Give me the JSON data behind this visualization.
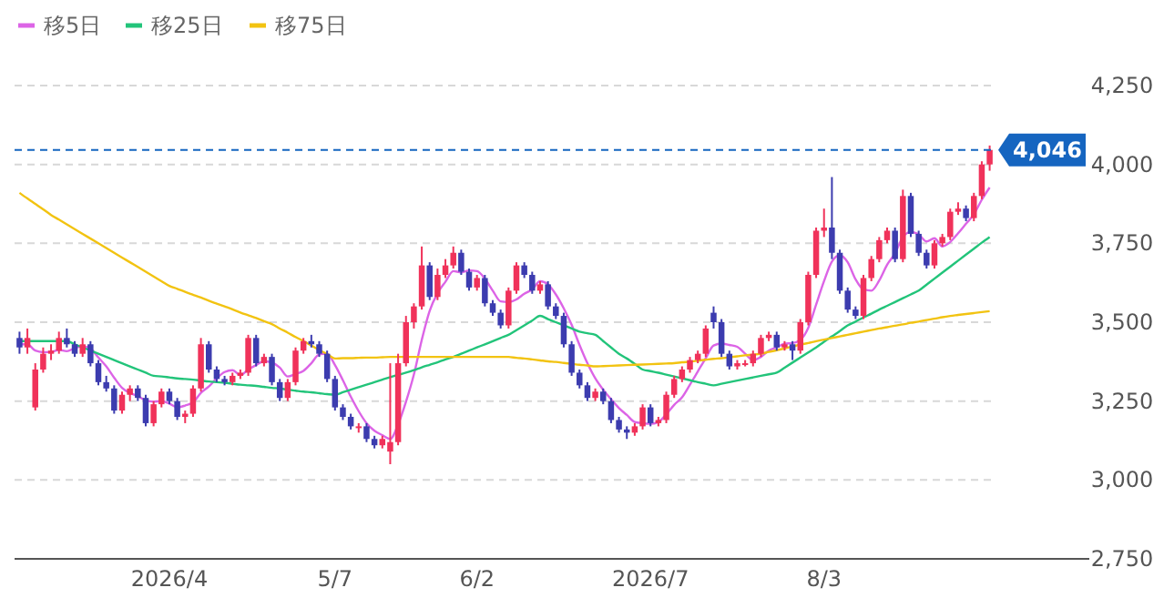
{
  "chart_data": {
    "type": "candlestick",
    "categories": [
      null,
      null,
      null,
      null,
      null,
      null,
      null,
      null,
      null,
      null,
      null,
      null,
      null,
      null,
      null,
      null,
      null,
      null,
      null,
      "2026/4",
      null,
      null,
      null,
      null,
      null,
      null,
      null,
      null,
      null,
      null,
      null,
      null,
      null,
      null,
      null,
      null,
      null,
      null,
      null,
      null,
      "5/7",
      null,
      null,
      null,
      null,
      null,
      null,
      null,
      null,
      null,
      null,
      null,
      null,
      null,
      null,
      null,
      null,
      null,
      "6/2",
      null,
      null,
      null,
      null,
      null,
      null,
      null,
      null,
      null,
      null,
      null,
      null,
      null,
      null,
      null,
      null,
      null,
      null,
      null,
      null,
      null,
      "2026/7",
      null,
      null,
      null,
      null,
      null,
      null,
      null,
      null,
      null,
      null,
      null,
      null,
      null,
      null,
      null,
      null,
      null,
      null,
      null,
      null,
      null,
      "8/3",
      null,
      null,
      null,
      null,
      null,
      null,
      null,
      null,
      null,
      null,
      null,
      null,
      null,
      null,
      null,
      null,
      null,
      null,
      null,
      null,
      null
    ],
    "ohlc": [
      [
        3450,
        3470,
        3400,
        3420
      ],
      [
        3420,
        3480,
        3400,
        3450
      ],
      [
        3230,
        3370,
        3220,
        3350
      ],
      [
        3350,
        3420,
        3340,
        3400
      ],
      [
        3400,
        3430,
        3380,
        3410
      ],
      [
        3410,
        3470,
        3400,
        3450
      ],
      [
        3450,
        3480,
        3420,
        3430
      ],
      [
        3430,
        3440,
        3390,
        3400
      ],
      [
        3400,
        3450,
        3390,
        3430
      ],
      [
        3430,
        3440,
        3360,
        3370
      ],
      [
        3370,
        3380,
        3300,
        3310
      ],
      [
        3310,
        3330,
        3280,
        3290
      ],
      [
        3290,
        3300,
        3210,
        3220
      ],
      [
        3220,
        3280,
        3210,
        3270
      ],
      [
        3270,
        3300,
        3250,
        3290
      ],
      [
        3290,
        3300,
        3250,
        3260
      ],
      [
        3260,
        3270,
        3170,
        3180
      ],
      [
        3180,
        3250,
        3170,
        3240
      ],
      [
        3240,
        3290,
        3230,
        3280
      ],
      [
        3280,
        3290,
        3240,
        3250
      ],
      [
        3250,
        3260,
        3190,
        3200
      ],
      [
        3200,
        3220,
        3180,
        3210
      ],
      [
        3210,
        3300,
        3200,
        3290
      ],
      [
        3290,
        3450,
        3280,
        3430
      ],
      [
        3430,
        3440,
        3340,
        3350
      ],
      [
        3350,
        3360,
        3310,
        3320
      ],
      [
        3320,
        3330,
        3300,
        3310
      ],
      [
        3310,
        3340,
        3300,
        3330
      ],
      [
        3330,
        3350,
        3320,
        3340
      ],
      [
        3340,
        3460,
        3330,
        3450
      ],
      [
        3450,
        3460,
        3360,
        3370
      ],
      [
        3370,
        3400,
        3360,
        3390
      ],
      [
        3390,
        3400,
        3300,
        3310
      ],
      [
        3310,
        3320,
        3250,
        3260
      ],
      [
        3260,
        3320,
        3250,
        3310
      ],
      [
        3310,
        3420,
        3300,
        3410
      ],
      [
        3410,
        3450,
        3400,
        3440
      ],
      [
        3440,
        3460,
        3420,
        3430
      ],
      [
        3430,
        3440,
        3390,
        3400
      ],
      [
        3400,
        3410,
        3310,
        3320
      ],
      [
        3320,
        3330,
        3220,
        3230
      ],
      [
        3230,
        3240,
        3190,
        3200
      ],
      [
        3200,
        3210,
        3160,
        3170
      ],
      [
        3170,
        3180,
        3150,
        3170
      ],
      [
        3170,
        3180,
        3120,
        3130
      ],
      [
        3130,
        3140,
        3100,
        3110
      ],
      [
        3110,
        3140,
        3100,
        3130
      ],
      [
        3090,
        3370,
        3050,
        3120
      ],
      [
        3120,
        3400,
        3110,
        3370
      ],
      [
        3370,
        3520,
        3360,
        3500
      ],
      [
        3500,
        3560,
        3480,
        3550
      ],
      [
        3550,
        3740,
        3540,
        3680
      ],
      [
        3680,
        3690,
        3570,
        3580
      ],
      [
        3580,
        3670,
        3570,
        3650
      ],
      [
        3650,
        3700,
        3640,
        3680
      ],
      [
        3680,
        3740,
        3670,
        3720
      ],
      [
        3720,
        3730,
        3650,
        3660
      ],
      [
        3660,
        3670,
        3600,
        3610
      ],
      [
        3610,
        3650,
        3600,
        3640
      ],
      [
        3640,
        3650,
        3550,
        3560
      ],
      [
        3560,
        3570,
        3520,
        3530
      ],
      [
        3530,
        3540,
        3480,
        3490
      ],
      [
        3490,
        3610,
        3480,
        3600
      ],
      [
        3600,
        3690,
        3590,
        3680
      ],
      [
        3680,
        3690,
        3640,
        3650
      ],
      [
        3650,
        3660,
        3590,
        3600
      ],
      [
        3600,
        3630,
        3590,
        3620
      ],
      [
        3620,
        3630,
        3540,
        3550
      ],
      [
        3550,
        3560,
        3510,
        3520
      ],
      [
        3520,
        3530,
        3420,
        3430
      ],
      [
        3430,
        3440,
        3330,
        3340
      ],
      [
        3340,
        3350,
        3290,
        3300
      ],
      [
        3300,
        3310,
        3250,
        3260
      ],
      [
        3260,
        3290,
        3250,
        3280
      ],
      [
        3280,
        3290,
        3240,
        3250
      ],
      [
        3250,
        3260,
        3180,
        3190
      ],
      [
        3190,
        3200,
        3150,
        3160
      ],
      [
        3160,
        3170,
        3130,
        3150
      ],
      [
        3150,
        3180,
        3140,
        3170
      ],
      [
        3170,
        3240,
        3160,
        3230
      ],
      [
        3230,
        3240,
        3170,
        3180
      ],
      [
        3180,
        3200,
        3170,
        3190
      ],
      [
        3190,
        3280,
        3180,
        3270
      ],
      [
        3270,
        3330,
        3260,
        3320
      ],
      [
        3320,
        3360,
        3310,
        3350
      ],
      [
        3350,
        3390,
        3340,
        3380
      ],
      [
        3380,
        3410,
        3370,
        3400
      ],
      [
        3400,
        3490,
        3390,
        3480
      ],
      [
        3530,
        3550,
        3480,
        3500
      ],
      [
        3500,
        3510,
        3390,
        3400
      ],
      [
        3400,
        3410,
        3350,
        3360
      ],
      [
        3360,
        3380,
        3350,
        3370
      ],
      [
        3370,
        3380,
        3360,
        3370
      ],
      [
        3370,
        3410,
        3360,
        3400
      ],
      [
        3400,
        3460,
        3390,
        3450
      ],
      [
        3450,
        3470,
        3440,
        3460
      ],
      [
        3460,
        3470,
        3410,
        3420
      ],
      [
        3420,
        3440,
        3410,
        3430
      ],
      [
        3430,
        3440,
        3380,
        3410
      ],
      [
        3410,
        3510,
        3400,
        3500
      ],
      [
        3500,
        3660,
        3490,
        3650
      ],
      [
        3650,
        3800,
        3640,
        3790
      ],
      [
        3790,
        3860,
        3770,
        3800
      ],
      [
        3800,
        3960,
        3700,
        3720
      ],
      [
        3720,
        3730,
        3590,
        3600
      ],
      [
        3600,
        3610,
        3530,
        3540
      ],
      [
        3540,
        3550,
        3510,
        3520
      ],
      [
        3520,
        3650,
        3510,
        3640
      ],
      [
        3640,
        3710,
        3630,
        3700
      ],
      [
        3700,
        3770,
        3690,
        3760
      ],
      [
        3760,
        3800,
        3750,
        3790
      ],
      [
        3790,
        3800,
        3690,
        3700
      ],
      [
        3700,
        3920,
        3690,
        3900
      ],
      [
        3900,
        3910,
        3770,
        3780
      ],
      [
        3780,
        3790,
        3710,
        3720
      ],
      [
        3720,
        3730,
        3670,
        3680
      ],
      [
        3680,
        3760,
        3670,
        3750
      ],
      [
        3750,
        3780,
        3740,
        3770
      ],
      [
        3770,
        3860,
        3760,
        3850
      ],
      [
        3850,
        3880,
        3840,
        3860
      ],
      [
        3860,
        3870,
        3820,
        3830
      ],
      [
        3830,
        3910,
        3820,
        3900
      ],
      [
        3900,
        4010,
        3890,
        4000
      ],
      [
        4000,
        4060,
        3980,
        4046
      ]
    ],
    "colors": [
      "#3c3caf",
      "#f0325a",
      "#f0325a",
      "#f0325a",
      "#f0325a",
      "#f0325a",
      "#3c3caf",
      "#3c3caf",
      "#f0325a",
      "#3c3caf",
      "#3c3caf",
      "#3c3caf",
      "#3c3caf",
      "#f0325a",
      "#f0325a",
      "#3c3caf",
      "#3c3caf",
      "#f0325a",
      "#f0325a",
      "#3c3caf",
      "#3c3caf",
      "#f0325a",
      "#f0325a",
      "#f0325a",
      "#3c3caf",
      "#3c3caf",
      "#3c3caf",
      "#f0325a",
      "#f0325a",
      "#f0325a",
      "#3c3caf",
      "#f0325a",
      "#3c3caf",
      "#3c3caf",
      "#f0325a",
      "#f0325a",
      "#f0325a",
      "#3c3caf",
      "#3c3caf",
      "#3c3caf",
      "#3c3caf",
      "#3c3caf",
      "#3c3caf",
      "#f0325a",
      "#3c3caf",
      "#3c3caf",
      "#f0325a",
      "#f0325a",
      "#f0325a",
      "#f0325a",
      "#f0325a",
      "#f0325a",
      "#3c3caf",
      "#f0325a",
      "#f0325a",
      "#f0325a",
      "#3c3caf",
      "#3c3caf",
      "#f0325a",
      "#3c3caf",
      "#3c3caf",
      "#3c3caf",
      "#f0325a",
      "#f0325a",
      "#3c3caf",
      "#3c3caf",
      "#f0325a",
      "#3c3caf",
      "#3c3caf",
      "#3c3caf",
      "#3c3caf",
      "#3c3caf",
      "#3c3caf",
      "#f0325a",
      "#3c3caf",
      "#3c3caf",
      "#3c3caf",
      "#3c3caf",
      "#f0325a",
      "#f0325a",
      "#3c3caf",
      "#f0325a",
      "#f0325a",
      "#f0325a",
      "#f0325a",
      "#f0325a",
      "#f0325a",
      "#f0325a",
      "#3c3caf",
      "#3c3caf",
      "#3c3caf",
      "#f0325a",
      "#f0325a",
      "#f0325a",
      "#f0325a",
      "#f0325a",
      "#3c3caf",
      "#f0325a",
      "#3c3caf",
      "#f0325a",
      "#f0325a",
      "#f0325a",
      "#f0325a",
      "#3c3caf",
      "#3c3caf",
      "#3c3caf",
      "#3c3caf",
      "#f0325a",
      "#f0325a",
      "#f0325a",
      "#f0325a",
      "#3c3caf",
      "#f0325a",
      "#3c3caf",
      "#3c3caf",
      "#3c3caf",
      "#f0325a",
      "#f0325a",
      "#f0325a",
      "#f0325a",
      "#3c3caf",
      "#f0325a",
      "#f0325a",
      "#f0325a"
    ],
    "series": [
      {
        "name": "移5日",
        "type": "line",
        "color": "#dc64e6",
        "values": [
          3430,
          3430,
          3410,
          3405,
          3406,
          3412,
          3408,
          3418,
          3424,
          3416,
          3388,
          3360,
          3324,
          3292,
          3276,
          3266,
          3252,
          3248,
          3250,
          3242,
          3230,
          3236,
          3246,
          3276,
          3296,
          3322,
          3342,
          3348,
          3332,
          3350,
          3364,
          3376,
          3372,
          3356,
          3328,
          3336,
          3346,
          3370,
          3398,
          3400,
          3364,
          3316,
          3264,
          3218,
          3180,
          3156,
          3142,
          3130,
          3176,
          3248,
          3334,
          3444,
          3536,
          3592,
          3628,
          3662,
          3658,
          3664,
          3662,
          3638,
          3600,
          3566,
          3564,
          3572,
          3590,
          3604,
          3630,
          3620,
          3588,
          3544,
          3492,
          3428,
          3370,
          3322,
          3286,
          3256,
          3228,
          3206,
          3184,
          3180,
          3178,
          3184,
          3208,
          3238,
          3262,
          3302,
          3344,
          3386,
          3426,
          3432,
          3428,
          3422,
          3400,
          3380,
          3390,
          3410,
          3420,
          3432,
          3434,
          3444,
          3482,
          3556,
          3630,
          3692,
          3712,
          3690,
          3636,
          3604,
          3600,
          3632,
          3682,
          3718,
          3770,
          3786,
          3778,
          3756,
          3766,
          3740,
          3754,
          3782,
          3812,
          3842,
          3888,
          3927
        ]
      },
      {
        "name": "移25日",
        "type": "line",
        "color": "#22c47a",
        "values": [
          3440,
          3440,
          3440,
          3440,
          3440,
          3440,
          3440,
          3430,
          3420,
          3410,
          3400,
          3390,
          3380,
          3370,
          3360,
          3350,
          3340,
          3330,
          3328,
          3325,
          3322,
          3320,
          3318,
          3315,
          3312,
          3310,
          3308,
          3305,
          3302,
          3300,
          3298,
          3295,
          3292,
          3290,
          3286,
          3283,
          3280,
          3278,
          3275,
          3272,
          3270,
          3278,
          3286,
          3294,
          3302,
          3310,
          3318,
          3326,
          3333,
          3340,
          3348,
          3357,
          3365,
          3373,
          3382,
          3390,
          3400,
          3410,
          3420,
          3430,
          3440,
          3450,
          3460,
          3475,
          3490,
          3505,
          3520,
          3510,
          3500,
          3490,
          3480,
          3470,
          3465,
          3460,
          3440,
          3420,
          3400,
          3385,
          3368,
          3350,
          3345,
          3340,
          3334,
          3328,
          3322,
          3316,
          3310,
          3305,
          3300,
          3305,
          3310,
          3315,
          3320,
          3325,
          3330,
          3335,
          3340,
          3356,
          3372,
          3388,
          3404,
          3420,
          3438,
          3455,
          3472,
          3490,
          3502,
          3515,
          3527,
          3540,
          3552,
          3564,
          3576,
          3588,
          3600,
          3619,
          3638,
          3657,
          3676,
          3695,
          3714,
          3733,
          3752,
          3770
        ]
      },
      {
        "name": "移75日",
        "type": "line",
        "color": "#f2c311",
        "values": [
          3910,
          3892,
          3875,
          3858,
          3840,
          3825,
          3810,
          3795,
          3780,
          3765,
          3750,
          3735,
          3720,
          3705,
          3690,
          3675,
          3660,
          3645,
          3630,
          3615,
          3606,
          3596,
          3587,
          3578,
          3568,
          3559,
          3550,
          3541,
          3531,
          3522,
          3513,
          3503,
          3494,
          3480,
          3467,
          3453,
          3440,
          3426,
          3412,
          3399,
          3385,
          3386,
          3386,
          3387,
          3388,
          3388,
          3389,
          3390,
          3390,
          3390,
          3390,
          3390,
          3390,
          3390,
          3390,
          3390,
          3390,
          3390,
          3390,
          3390,
          3390,
          3390,
          3390,
          3387,
          3385,
          3382,
          3379,
          3376,
          3374,
          3371,
          3368,
          3365,
          3363,
          3360,
          3361,
          3362,
          3363,
          3364,
          3365,
          3366,
          3367,
          3368,
          3369,
          3370,
          3373,
          3375,
          3378,
          3381,
          3384,
          3386,
          3389,
          3392,
          3395,
          3397,
          3400,
          3406,
          3411,
          3417,
          3423,
          3429,
          3434,
          3440,
          3445,
          3450,
          3455,
          3460,
          3465,
          3470,
          3475,
          3480,
          3484,
          3489,
          3493,
          3498,
          3502,
          3507,
          3511,
          3516,
          3520,
          3523,
          3526,
          3529,
          3532,
          3535
        ]
      }
    ],
    "ylim": [
      2750,
      4250
    ],
    "yticks": [
      {
        "value": 2750,
        "label": "2,750"
      },
      {
        "value": 3000,
        "label": "3,000"
      },
      {
        "value": 3250,
        "label": "3,250"
      },
      {
        "value": 3500,
        "label": "3,500"
      },
      {
        "value": 3750,
        "label": "3,750"
      },
      {
        "value": 4000,
        "label": "4,000"
      },
      {
        "value": 4250,
        "label": "4,250"
      }
    ],
    "ref_lines": [
      {
        "axis": "y",
        "value": 4046,
        "label": "4,046",
        "color": "#1565c0",
        "line_style": "dashed"
      }
    ],
    "grid": "y",
    "legend": "top left"
  }
}
